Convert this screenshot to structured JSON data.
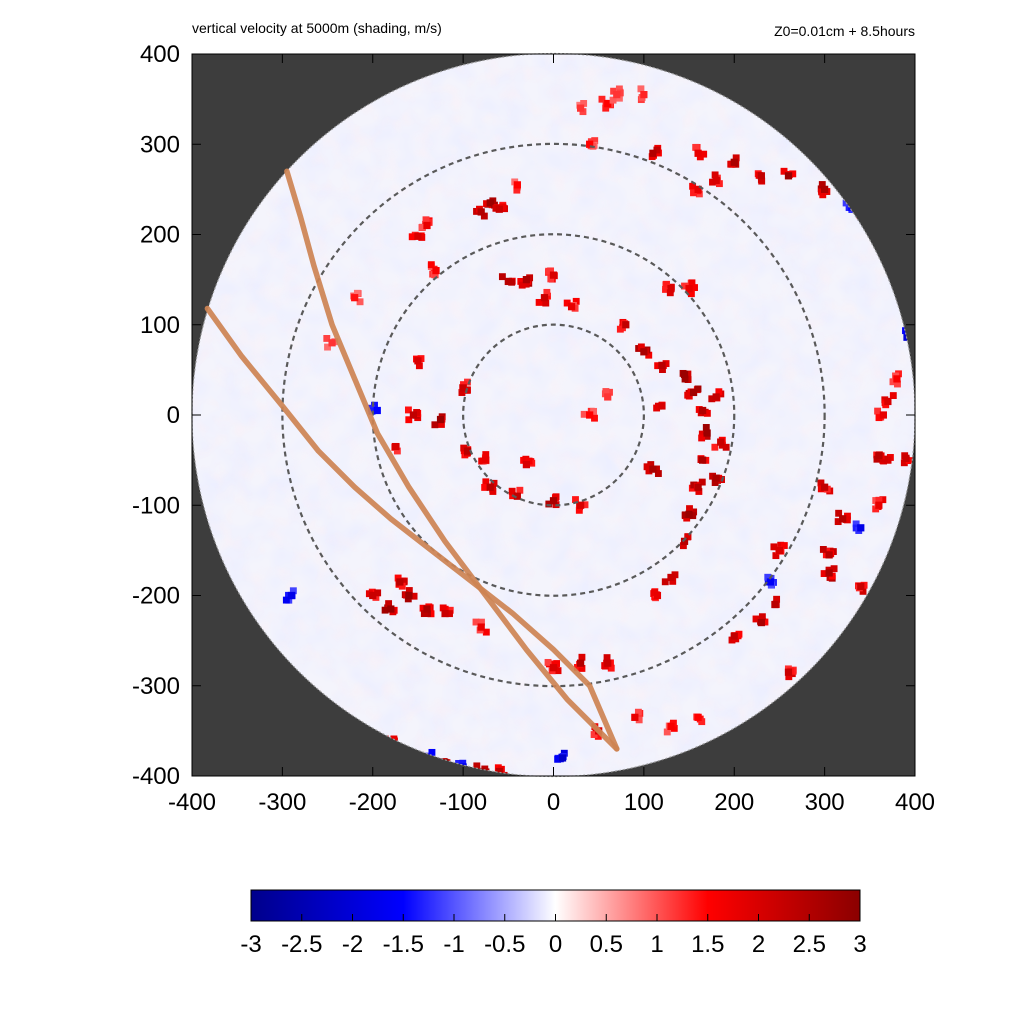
{
  "chart_data": {
    "type": "heatmap",
    "title": "vertical velocity at 5000m (shading, m/s)",
    "subtitle": "Z0=0.01cm  + 8.5hours",
    "xlim": [
      -400,
      400
    ],
    "ylim": [
      -400,
      400
    ],
    "x_ticks": [
      "-400",
      "-300",
      "-200",
      "-100",
      "0",
      "100",
      "200",
      "300",
      "400"
    ],
    "y_ticks": [
      "400",
      "300",
      "200",
      "100",
      "0",
      "-100",
      "-200",
      "-300",
      "-400"
    ],
    "domain_radius": 400,
    "reference_circle_radii": [
      100,
      200,
      300
    ],
    "colorbar": {
      "range": [
        -3,
        3
      ],
      "ticks": [
        "-3",
        "-2.5",
        "-2",
        "-1.5",
        "-1",
        "-0.5",
        "0",
        "0.5",
        "1",
        "1.5",
        "2",
        "2.5",
        "3"
      ],
      "colors": [
        "#00008b",
        "#0000ff",
        "#ffffff",
        "#ff0000",
        "#8b0000"
      ]
    },
    "background_color": "#3d3d3d",
    "track_color": "#cd8352",
    "tracks": [
      [
        [
          -295,
          270
        ],
        [
          -280,
          220
        ],
        [
          -265,
          165
        ],
        [
          -245,
          100
        ],
        [
          -220,
          40
        ],
        [
          -195,
          -20
        ],
        [
          -160,
          -80
        ],
        [
          -120,
          -140
        ],
        [
          -75,
          -200
        ],
        [
          -30,
          -260
        ],
        [
          15,
          -315
        ],
        [
          70,
          -370
        ]
      ],
      [
        [
          -383,
          118
        ],
        [
          -345,
          65
        ],
        [
          -300,
          10
        ],
        [
          -260,
          -40
        ],
        [
          -220,
          -80
        ],
        [
          -180,
          -115
        ],
        [
          -135,
          -150
        ],
        [
          -90,
          -185
        ],
        [
          -45,
          -220
        ],
        [
          0,
          -260
        ],
        [
          40,
          -300
        ],
        [
          70,
          -370
        ]
      ]
    ],
    "features": [
      {
        "x": -70,
        "y": 235,
        "v": 2.8
      },
      {
        "x": -80,
        "y": 225,
        "v": 2.5
      },
      {
        "x": -60,
        "y": 228,
        "v": 2.2
      },
      {
        "x": -140,
        "y": 210,
        "v": 1.8
      },
      {
        "x": -150,
        "y": 198,
        "v": 2.0
      },
      {
        "x": 40,
        "y": 300,
        "v": 1.5
      },
      {
        "x": 110,
        "y": 290,
        "v": 2.5
      },
      {
        "x": 160,
        "y": 290,
        "v": 1.8
      },
      {
        "x": 200,
        "y": 280,
        "v": 2.6
      },
      {
        "x": 230,
        "y": 265,
        "v": 2.3
      },
      {
        "x": 260,
        "y": 265,
        "v": 2.8
      },
      {
        "x": 300,
        "y": 250,
        "v": 2.6
      },
      {
        "x": 330,
        "y": 230,
        "v": -1.5
      },
      {
        "x": 345,
        "y": 220,
        "v": 2.3
      },
      {
        "x": 370,
        "y": 185,
        "v": -1.8
      },
      {
        "x": 390,
        "y": 140,
        "v": -1.6
      },
      {
        "x": 395,
        "y": 90,
        "v": -2.2
      },
      {
        "x": 160,
        "y": 250,
        "v": 1.8
      },
      {
        "x": 180,
        "y": 260,
        "v": 2.0
      },
      {
        "x": -40,
        "y": 255,
        "v": 1.5
      },
      {
        "x": -50,
        "y": 148,
        "v": 2.4
      },
      {
        "x": -30,
        "y": 150,
        "v": 2.6
      },
      {
        "x": -10,
        "y": 130,
        "v": 2.2
      },
      {
        "x": 0,
        "y": 155,
        "v": 2.0
      },
      {
        "x": 20,
        "y": 120,
        "v": 1.8
      },
      {
        "x": 80,
        "y": 100,
        "v": 2.3
      },
      {
        "x": 100,
        "y": 70,
        "v": 2.6
      },
      {
        "x": 120,
        "y": 55,
        "v": 2.4
      },
      {
        "x": 145,
        "y": 45,
        "v": 2.8
      },
      {
        "x": 155,
        "y": 25,
        "v": 2.7
      },
      {
        "x": 165,
        "y": 5,
        "v": 2.5
      },
      {
        "x": 170,
        "y": -20,
        "v": 2.8
      },
      {
        "x": 165,
        "y": -50,
        "v": 2.6
      },
      {
        "x": 160,
        "y": -80,
        "v": 2.5
      },
      {
        "x": 150,
        "y": -110,
        "v": 2.8
      },
      {
        "x": 145,
        "y": -140,
        "v": 2.4
      },
      {
        "x": 130,
        "y": -180,
        "v": 2.2
      },
      {
        "x": 115,
        "y": -200,
        "v": 1.8
      },
      {
        "x": 110,
        "y": -60,
        "v": 2.6
      },
      {
        "x": 185,
        "y": -30,
        "v": 2.2
      },
      {
        "x": 180,
        "y": -70,
        "v": 2.6
      },
      {
        "x": 180,
        "y": 20,
        "v": 2.3
      },
      {
        "x": 120,
        "y": 10,
        "v": 2.0
      },
      {
        "x": -150,
        "y": 60,
        "v": 2.0
      },
      {
        "x": -155,
        "y": 0,
        "v": 2.3
      },
      {
        "x": -125,
        "y": -5,
        "v": 2.8
      },
      {
        "x": -100,
        "y": 30,
        "v": 2.2
      },
      {
        "x": -95,
        "y": -40,
        "v": 2.4
      },
      {
        "x": -75,
        "y": -50,
        "v": 1.8
      },
      {
        "x": -195,
        "y": 5,
        "v": -1.5
      },
      {
        "x": -175,
        "y": -35,
        "v": 2.0
      },
      {
        "x": -70,
        "y": -80,
        "v": 2.4
      },
      {
        "x": -40,
        "y": -90,
        "v": 2.3
      },
      {
        "x": 0,
        "y": -95,
        "v": 2.6
      },
      {
        "x": 30,
        "y": -100,
        "v": 2.0
      },
      {
        "x": -30,
        "y": -55,
        "v": 2.0
      },
      {
        "x": 40,
        "y": 0,
        "v": 1.5
      },
      {
        "x": 300,
        "y": -80,
        "v": 2.3
      },
      {
        "x": 320,
        "y": -115,
        "v": 2.5
      },
      {
        "x": 340,
        "y": -125,
        "v": -1.8
      },
      {
        "x": 305,
        "y": -155,
        "v": 2.4
      },
      {
        "x": 305,
        "y": -175,
        "v": 2.6
      },
      {
        "x": 340,
        "y": -190,
        "v": 2.2
      },
      {
        "x": 250,
        "y": -150,
        "v": 2.0
      },
      {
        "x": 245,
        "y": -210,
        "v": 2.4
      },
      {
        "x": 230,
        "y": -230,
        "v": 2.6
      },
      {
        "x": 200,
        "y": -245,
        "v": 2.3
      },
      {
        "x": 240,
        "y": -185,
        "v": -1.6
      },
      {
        "x": 260,
        "y": -285,
        "v": 2.2
      },
      {
        "x": 360,
        "y": -100,
        "v": 1.8
      },
      {
        "x": 370,
        "y": -50,
        "v": 2.0
      },
      {
        "x": -200,
        "y": -200,
        "v": 2.2
      },
      {
        "x": -170,
        "y": -185,
        "v": 2.4
      },
      {
        "x": -160,
        "y": -200,
        "v": 2.8
      },
      {
        "x": -140,
        "y": -215,
        "v": 2.6
      },
      {
        "x": -120,
        "y": -220,
        "v": 2.2
      },
      {
        "x": -80,
        "y": -235,
        "v": 1.8
      },
      {
        "x": -180,
        "y": -215,
        "v": 2.8
      },
      {
        "x": -290,
        "y": -200,
        "v": -1.8
      },
      {
        "x": 30,
        "y": -275,
        "v": 2.5
      },
      {
        "x": 60,
        "y": -275,
        "v": 2.2
      },
      {
        "x": 0,
        "y": -280,
        "v": 2.0
      },
      {
        "x": -180,
        "y": -365,
        "v": 2.0
      },
      {
        "x": -140,
        "y": -380,
        "v": -2.0
      },
      {
        "x": -120,
        "y": -385,
        "v": 2.8
      },
      {
        "x": -100,
        "y": -390,
        "v": -1.8
      },
      {
        "x": -80,
        "y": -395,
        "v": 2.6
      },
      {
        "x": -60,
        "y": -395,
        "v": 2.4
      },
      {
        "x": 10,
        "y": -380,
        "v": -2.2
      },
      {
        "x": 50,
        "y": -350,
        "v": 2.0
      },
      {
        "x": 90,
        "y": -335,
        "v": 1.8
      },
      {
        "x": 130,
        "y": -345,
        "v": 1.6
      },
      {
        "x": 160,
        "y": -335,
        "v": 1.5
      },
      {
        "x": 60,
        "y": 345,
        "v": 1.5
      },
      {
        "x": 70,
        "y": 355,
        "v": 1.2
      },
      {
        "x": 100,
        "y": 355,
        "v": 1.3
      },
      {
        "x": 30,
        "y": 340,
        "v": 1.2
      },
      {
        "x": 360,
        "y": -45,
        "v": 2.4
      },
      {
        "x": 390,
        "y": -48,
        "v": 2.2
      },
      {
        "x": 365,
        "y": 0,
        "v": 1.8
      },
      {
        "x": 370,
        "y": 15,
        "v": 2.0
      },
      {
        "x": 380,
        "y": 40,
        "v": 1.6
      },
      {
        "x": -130,
        "y": 160,
        "v": 1.6
      },
      {
        "x": -220,
        "y": 130,
        "v": 1.4
      },
      {
        "x": -245,
        "y": 80,
        "v": 1.2
      },
      {
        "x": 60,
        "y": 20,
        "v": 1.2
      },
      {
        "x": 130,
        "y": 140,
        "v": 2.0
      },
      {
        "x": 150,
        "y": 140,
        "v": 1.8
      }
    ]
  }
}
